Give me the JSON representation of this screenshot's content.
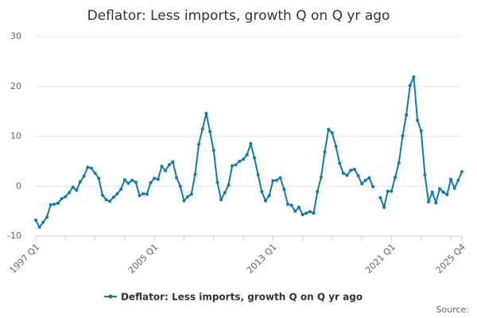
{
  "chart_data": {
    "type": "line",
    "title": "Deflator: Less imports, growth Q on Q yr ago",
    "source": "Source:",
    "categories": [
      "1997 Q1",
      null,
      null,
      null,
      null,
      null,
      null,
      null,
      null,
      null,
      null,
      null,
      null,
      null,
      null,
      null,
      null,
      null,
      null,
      null,
      null,
      null,
      null,
      null,
      null,
      null,
      null,
      null,
      null,
      null,
      null,
      null,
      "2005 Q1",
      null,
      null,
      null,
      null,
      null,
      null,
      null,
      null,
      null,
      null,
      null,
      null,
      null,
      null,
      null,
      null,
      null,
      null,
      null,
      null,
      null,
      null,
      null,
      null,
      null,
      null,
      null,
      null,
      null,
      null,
      null,
      "2013 Q1",
      null,
      null,
      null,
      null,
      null,
      null,
      null,
      null,
      null,
      null,
      null,
      null,
      null,
      null,
      null,
      null,
      null,
      null,
      null,
      null,
      null,
      null,
      null,
      null,
      null,
      null,
      null,
      null,
      null,
      null,
      null,
      "2021 Q1",
      null,
      null,
      null,
      null,
      null,
      null,
      null,
      null,
      null,
      null,
      null,
      null,
      null,
      null,
      null,
      null,
      null,
      null,
      "2025 Q4"
    ],
    "series": [
      {
        "name": "Deflator: Less imports, growth Q on Q yr ago",
        "color": "#0f7ab5",
        "values": [
          -6.8,
          -8.2,
          -7.2,
          -6.2,
          -3.7,
          -3.6,
          -3.4,
          -2.5,
          -2.1,
          -1.3,
          -0.2,
          -0.8,
          0.9,
          2.0,
          3.8,
          3.6,
          2.6,
          1.6,
          -1.8,
          -2.7,
          -3.0,
          -2.2,
          -1.5,
          -0.6,
          1.3,
          0.6,
          1.2,
          0.8,
          -1.9,
          -1.5,
          -1.6,
          0.7,
          1.6,
          1.4,
          4.0,
          3.1,
          4.3,
          4.9,
          1.7,
          0.0,
          -2.9,
          -2.1,
          -1.6,
          2.4,
          8.4,
          11.5,
          14.6,
          11.0,
          7.2,
          0.8,
          -2.7,
          -1.3,
          0.2,
          4.1,
          4.3,
          5.0,
          5.4,
          6.3,
          8.5,
          5.7,
          2.3,
          -1.1,
          -2.9,
          -1.9,
          1.1,
          1.2,
          1.7,
          -0.6,
          -3.6,
          -3.8,
          -5.0,
          -4.2,
          -5.7,
          -5.4,
          -5.1,
          -5.4,
          -1.1,
          1.8,
          6.9,
          11.4,
          10.7,
          8.0,
          4.6,
          2.6,
          2.2,
          3.2,
          3.4,
          2.1,
          0.5,
          1.2,
          1.7,
          -0.1,
          null,
          -2.3,
          -4.2,
          -1.0,
          -1.0,
          1.8,
          4.7,
          10.1,
          14.3,
          20.2,
          21.9,
          13.2,
          11.1,
          2.3,
          -3.1,
          -1.2,
          -3.3,
          -0.5,
          -1.2,
          -1.7,
          1.4,
          -0.4,
          1.2,
          2.9
        ]
      }
    ],
    "ylim": [
      -10,
      30
    ],
    "yticks": [
      -10,
      0,
      10,
      20,
      30
    ],
    "grid": true
  }
}
